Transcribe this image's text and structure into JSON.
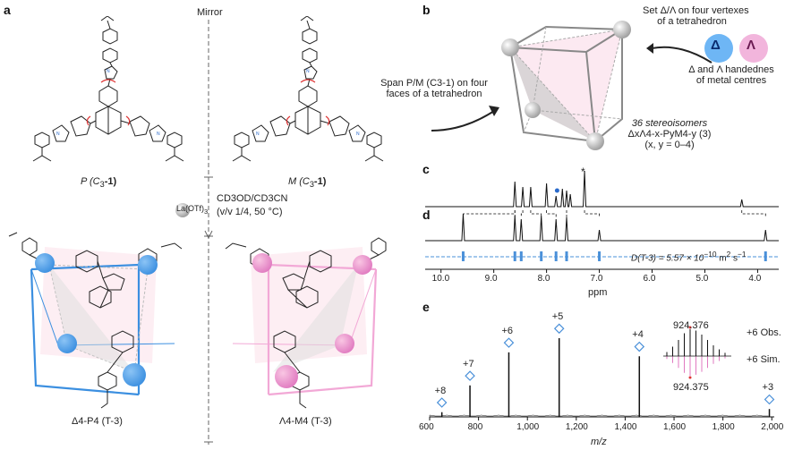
{
  "panels": {
    "a": "a",
    "b": "b",
    "c": "c",
    "d": "d",
    "e": "e"
  },
  "panel_a": {
    "mirror": "Mirror",
    "p_label": "P (C",
    "p_sub": "3",
    "p_tail": "-1)",
    "m_label": "M (C",
    "m_sub": "3",
    "m_tail": "-1)",
    "reagent": "La(OTf)",
    "reagent_sub": "3",
    "solvent": "CD3OD/CD3CN",
    "conditions": "(v/v 1/4, 50 °C)",
    "delta_label": "Δ4-P4 (T-3)",
    "lambda_label": "Λ4-M4 (T-3)"
  },
  "panel_b": {
    "set_line1": "Set Δ/Λ on four vertexes",
    "set_line2": "of a tetrahedron",
    "delta": "Δ",
    "lambda": "Λ",
    "hand_line1": "Δ and Λ handednes",
    "hand_line2": "of metal centres",
    "span_line1": "Span P/M (C3-1) on four",
    "span_line2": "faces of a tetrahedron",
    "stereo_line1": "36 stereoisomers",
    "stereo_line2": "ΔxΛ4-x-PyM4-y (3)",
    "stereo_line3": "(x, y = 0–4)"
  },
  "panel_cd": {
    "d_annot": "D(T-3) = 5.57 × 10",
    "d_exp": "−10",
    "d_unit": " m",
    "d_unit_exp": "2",
    "d_unit_tail": " s",
    "d_unit_tail_exp": "−1",
    "star": "*",
    "ppm_label": "ppm",
    "ppm_ticks": [
      "10.0",
      "9.0",
      "8.0",
      "7.0",
      "6.0",
      "5.0",
      "4.0"
    ],
    "ppm_values": [
      10.0,
      9.0,
      8.0,
      7.0,
      6.0,
      5.0,
      4.0
    ],
    "ppm_range": [
      10.3,
      3.6
    ]
  },
  "panel_e": {
    "xlabel": "m/z",
    "xticks": [
      "600",
      "800",
      "1,000",
      "1,200",
      "1,400",
      "1,600",
      "1,800",
      "2,000"
    ],
    "xvalues": [
      600,
      800,
      1000,
      1200,
      1400,
      1600,
      1800,
      2000
    ],
    "peaks": [
      {
        "label": "+8",
        "mz": 650,
        "rel": 0.06
      },
      {
        "label": "+7",
        "mz": 765,
        "rel": 0.4
      },
      {
        "label": "+6",
        "mz": 924,
        "rel": 0.82
      },
      {
        "label": "+5",
        "mz": 1130,
        "rel": 1.0
      },
      {
        "label": "+4",
        "mz": 1458,
        "rel": 0.77
      },
      {
        "label": "+3",
        "mz": 1990,
        "rel": 0.1
      }
    ],
    "inset_obs_value": "924.376",
    "inset_sim_value": "924.375",
    "obs_label": "+6 Obs.",
    "sim_label": "+6 Sim."
  }
}
